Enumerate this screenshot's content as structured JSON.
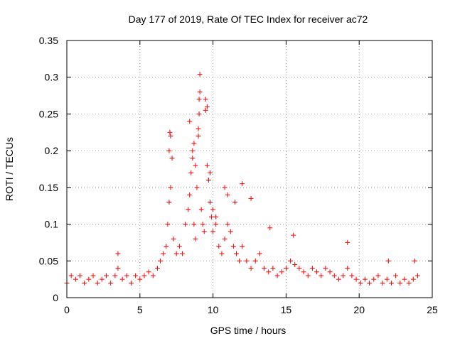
{
  "chart_data": {
    "type": "scatter",
    "title": "Day 177 of 2019, Rate Of TEC Index for receiver ac72",
    "xlabel": "GPS time / hours",
    "ylabel": "ROTI / TECUs",
    "xlim": [
      0,
      25
    ],
    "ylim": [
      0,
      0.35
    ],
    "xticks": [
      0,
      5,
      10,
      15,
      20,
      25
    ],
    "xtick_labels": [
      "0",
      "5",
      "10",
      "15",
      "20",
      "25"
    ],
    "yticks": [
      0,
      0.05,
      0.1,
      0.15,
      0.2,
      0.25,
      0.3,
      0.35
    ],
    "ytick_labels": [
      "0",
      "0.05",
      "0.1",
      "0.15",
      "0.2",
      "0.25",
      "0.3",
      "0.35"
    ],
    "grid": true,
    "marker": "+",
    "series_color": "#ff0000",
    "series": [
      {
        "name": "ROTI",
        "x": [
          0.0,
          0.3,
          0.6,
          0.9,
          1.2,
          1.5,
          1.8,
          2.1,
          2.4,
          2.7,
          3.0,
          3.3,
          3.5,
          3.8,
          4.1,
          4.4,
          4.7,
          5.0,
          5.3,
          5.6,
          5.9,
          6.2,
          6.4,
          6.6,
          6.8,
          6.9,
          7.0,
          7.1,
          7.2,
          7.3,
          7.5,
          7.7,
          7.9,
          8.1,
          8.3,
          8.4,
          8.5,
          8.6,
          8.7,
          8.8,
          8.9,
          9.0,
          9.05,
          9.1,
          9.2,
          9.3,
          9.4,
          9.5,
          9.6,
          9.7,
          9.8,
          9.9,
          10.0,
          10.2,
          10.4,
          10.6,
          10.8,
          11.0,
          11.2,
          11.4,
          11.6,
          11.8,
          12.0,
          12.3,
          12.6,
          12.9,
          13.2,
          13.5,
          13.8,
          14.1,
          14.4,
          14.7,
          15.0,
          15.3,
          15.6,
          15.9,
          16.2,
          16.5,
          16.8,
          17.1,
          17.4,
          17.7,
          18.0,
          18.3,
          18.6,
          18.9,
          19.2,
          19.5,
          19.8,
          20.1,
          20.4,
          20.7,
          21.0,
          21.3,
          21.6,
          21.9,
          22.2,
          22.5,
          22.8,
          23.1,
          23.4,
          23.7,
          24.0,
          7.05,
          7.1,
          7.0,
          8.4,
          8.6,
          8.7,
          8.8,
          9.0,
          9.05,
          9.1,
          9.5,
          9.6,
          9.8,
          10.0,
          10.2,
          10.8,
          11.0,
          11.5,
          12.0,
          12.6,
          13.9,
          15.5,
          19.2,
          22.0,
          23.8,
          3.5
        ],
        "y": [
          0.02,
          0.03,
          0.025,
          0.03,
          0.02,
          0.025,
          0.03,
          0.02,
          0.025,
          0.03,
          0.02,
          0.03,
          0.04,
          0.025,
          0.03,
          0.02,
          0.03,
          0.025,
          0.03,
          0.035,
          0.03,
          0.04,
          0.05,
          0.06,
          0.07,
          0.1,
          0.13,
          0.15,
          0.19,
          0.08,
          0.06,
          0.07,
          0.06,
          0.1,
          0.12,
          0.14,
          0.17,
          0.2,
          0.1,
          0.08,
          0.15,
          0.22,
          0.25,
          0.28,
          0.12,
          0.1,
          0.09,
          0.27,
          0.18,
          0.16,
          0.13,
          0.11,
          0.09,
          0.1,
          0.07,
          0.06,
          0.08,
          0.1,
          0.09,
          0.07,
          0.06,
          0.05,
          0.07,
          0.05,
          0.04,
          0.05,
          0.06,
          0.04,
          0.035,
          0.04,
          0.03,
          0.035,
          0.04,
          0.05,
          0.045,
          0.04,
          0.035,
          0.03,
          0.04,
          0.035,
          0.03,
          0.04,
          0.035,
          0.03,
          0.025,
          0.03,
          0.04,
          0.03,
          0.025,
          0.02,
          0.025,
          0.02,
          0.025,
          0.03,
          0.02,
          0.025,
          0.02,
          0.03,
          0.02,
          0.025,
          0.02,
          0.025,
          0.03,
          0.225,
          0.22,
          0.2,
          0.24,
          0.19,
          0.21,
          0.18,
          0.23,
          0.27,
          0.304,
          0.255,
          0.26,
          0.17,
          0.12,
          0.11,
          0.15,
          0.14,
          0.13,
          0.155,
          0.135,
          0.095,
          0.085,
          0.075,
          0.05,
          0.05,
          0.06
        ]
      }
    ]
  }
}
